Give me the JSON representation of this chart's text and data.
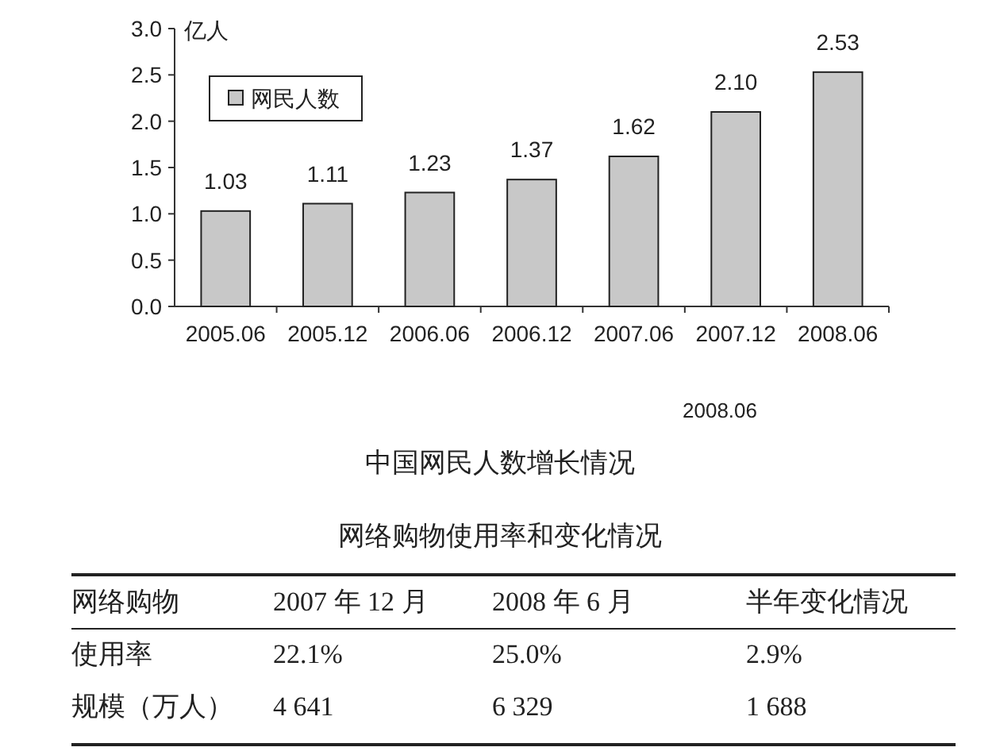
{
  "chart_data": [
    {
      "type": "bar",
      "title": "中国网民人数增长情况",
      "ylabel": "亿人",
      "categories": [
        "2005.06",
        "2005.12",
        "2006.06",
        "2006.12",
        "2007.06",
        "2007.12",
        "2008.06"
      ],
      "series": [
        {
          "name": "网民人数",
          "color": "#c8c8c8",
          "values": [
            1.03,
            1.11,
            1.23,
            1.37,
            1.62,
            2.1,
            2.53
          ]
        }
      ],
      "value_labels": [
        "1.03",
        "1.11",
        "1.23",
        "1.37",
        "1.62",
        "2.10",
        "2.53"
      ],
      "ylim": [
        0,
        3
      ],
      "yticks": [
        {
          "value": 0,
          "label": "0.0"
        },
        {
          "value": 0.5,
          "label": "0.5"
        },
        {
          "value": 1,
          "label": "1.0"
        },
        {
          "value": 1.5,
          "label": "1.5"
        },
        {
          "value": 2,
          "label": "2.0"
        },
        {
          "value": 2.5,
          "label": "2.5"
        },
        {
          "value": 3,
          "label": "3.0"
        }
      ],
      "legend": "top left",
      "grid": false,
      "annotations": [
        "2008.06"
      ]
    },
    {
      "type": "other",
      "title": "网络购物使用率和变化情况",
      "annotations": [
        "网络购物",
        "2007 年 12 月",
        "2008 年 6 月",
        "半年变化情况",
        "使用率",
        "22.1%",
        "25.0%",
        "2.9%",
        "规模（万人）",
        "4 641",
        "6 329",
        "1 688"
      ]
    }
  ]
}
